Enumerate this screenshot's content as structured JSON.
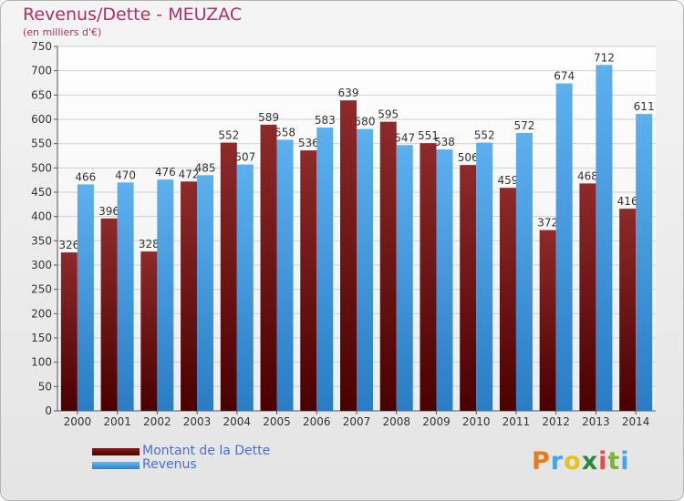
{
  "chart_data": {
    "type": "bar",
    "title": "Revenus/Dette - MEUZAC",
    "subtitle": "(en milliers d'€)",
    "categories": [
      "2000",
      "2001",
      "2002",
      "2003",
      "2004",
      "2005",
      "2006",
      "2007",
      "2008",
      "2009",
      "2010",
      "2011",
      "2012",
      "2013",
      "2014"
    ],
    "series": [
      {
        "name": "Montant de la Dette",
        "color": "#8b1a1a",
        "values": [
          326,
          396,
          328,
          472,
          552,
          589,
          536,
          639,
          595,
          551,
          506,
          459,
          372,
          468,
          416
        ]
      },
      {
        "name": "Revenus",
        "color": "#4aa3e8",
        "values": [
          466,
          470,
          476,
          485,
          507,
          558,
          583,
          580,
          547,
          538,
          552,
          572,
          674,
          712,
          611
        ]
      }
    ],
    "ylim": [
      0,
      750
    ],
    "yticks": [
      0,
      50,
      100,
      150,
      200,
      250,
      300,
      350,
      400,
      450,
      500,
      550,
      600,
      650,
      700,
      750
    ],
    "grid": true,
    "legend_position": "bottom-left"
  },
  "logo": {
    "letters": [
      "P",
      "r",
      "o",
      "x",
      "i",
      "t",
      "i"
    ],
    "colors": [
      "#e87a1e",
      "#4aa3e8",
      "#e8c21e",
      "#2a8a3a",
      "#e84a4a",
      "#7ab830",
      "#4aa3e8"
    ]
  }
}
